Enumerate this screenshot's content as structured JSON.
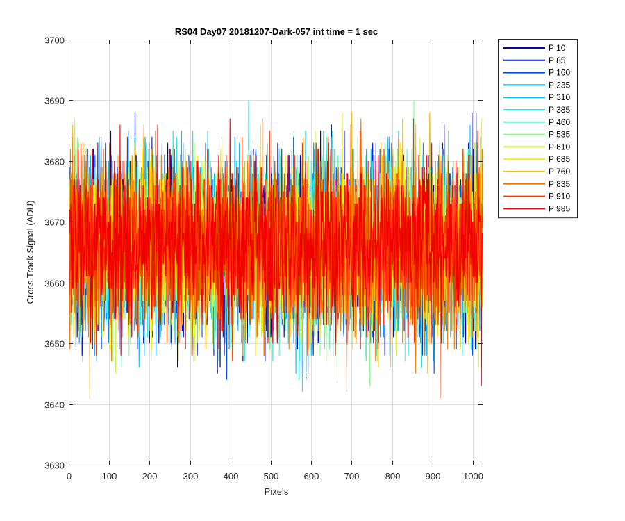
{
  "chart_data": {
    "type": "line",
    "title": "RS04 Day07 20181207-Dark-057 int time = 1 sec",
    "xlabel": "Pixels",
    "ylabel": "Cross Track Signal (ADU)",
    "xlim": [
      0,
      1024
    ],
    "ylim": [
      3630,
      3700
    ],
    "xticks": [
      0,
      100,
      200,
      300,
      400,
      500,
      600,
      700,
      800,
      900,
      1000
    ],
    "yticks": [
      3630,
      3640,
      3650,
      3660,
      3670,
      3680,
      3690,
      3700
    ],
    "xtick_labels": [
      "0",
      "100",
      "200",
      "300",
      "400",
      "500",
      "600",
      "700",
      "800",
      "900",
      "1000"
    ],
    "ytick_labels": [
      "3630",
      "3640",
      "3650",
      "3660",
      "3670",
      "3680",
      "3690",
      "3700"
    ],
    "grid": true,
    "legend_position": "outside-top-right",
    "n_points": 1024,
    "series": [
      {
        "name": "P 10",
        "color": "#0000b4",
        "mean": 3666,
        "sd": 7.0,
        "seed": 11
      },
      {
        "name": "P 85",
        "color": "#0010dc",
        "mean": 3666,
        "sd": 7.0,
        "seed": 23
      },
      {
        "name": "P 160",
        "color": "#0050f0",
        "mean": 3666,
        "sd": 7.0,
        "seed": 37
      },
      {
        "name": "P 235",
        "color": "#0090f8",
        "mean": 3666,
        "sd": 7.0,
        "seed": 41
      },
      {
        "name": "P 310",
        "color": "#00c0f8",
        "mean": 3666,
        "sd": 7.0,
        "seed": 53
      },
      {
        "name": "P 385",
        "color": "#20e8e8",
        "mean": 3666,
        "sd": 7.0,
        "seed": 67
      },
      {
        "name": "P 460",
        "color": "#60f0c0",
        "mean": 3666,
        "sd": 7.0,
        "seed": 71
      },
      {
        "name": "P 535",
        "color": "#90f890",
        "mean": 3666,
        "sd": 7.0,
        "seed": 83
      },
      {
        "name": "P 610",
        "color": "#c8f840",
        "mean": 3666,
        "sd": 7.0,
        "seed": 97
      },
      {
        "name": "P 685",
        "color": "#f8f000",
        "mean": 3666,
        "sd": 7.0,
        "seed": 101
      },
      {
        "name": "P 760",
        "color": "#f8b800",
        "mean": 3666,
        "sd": 7.0,
        "seed": 113
      },
      {
        "name": "P 835",
        "color": "#f87800",
        "mean": 3666,
        "sd": 7.0,
        "seed": 127
      },
      {
        "name": "P 910",
        "color": "#f83800",
        "mean": 3666,
        "sd": 7.0,
        "seed": 131
      },
      {
        "name": "P 985",
        "color": "#f00000",
        "mean": 3666,
        "sd": 7.0,
        "seed": 149
      }
    ]
  }
}
